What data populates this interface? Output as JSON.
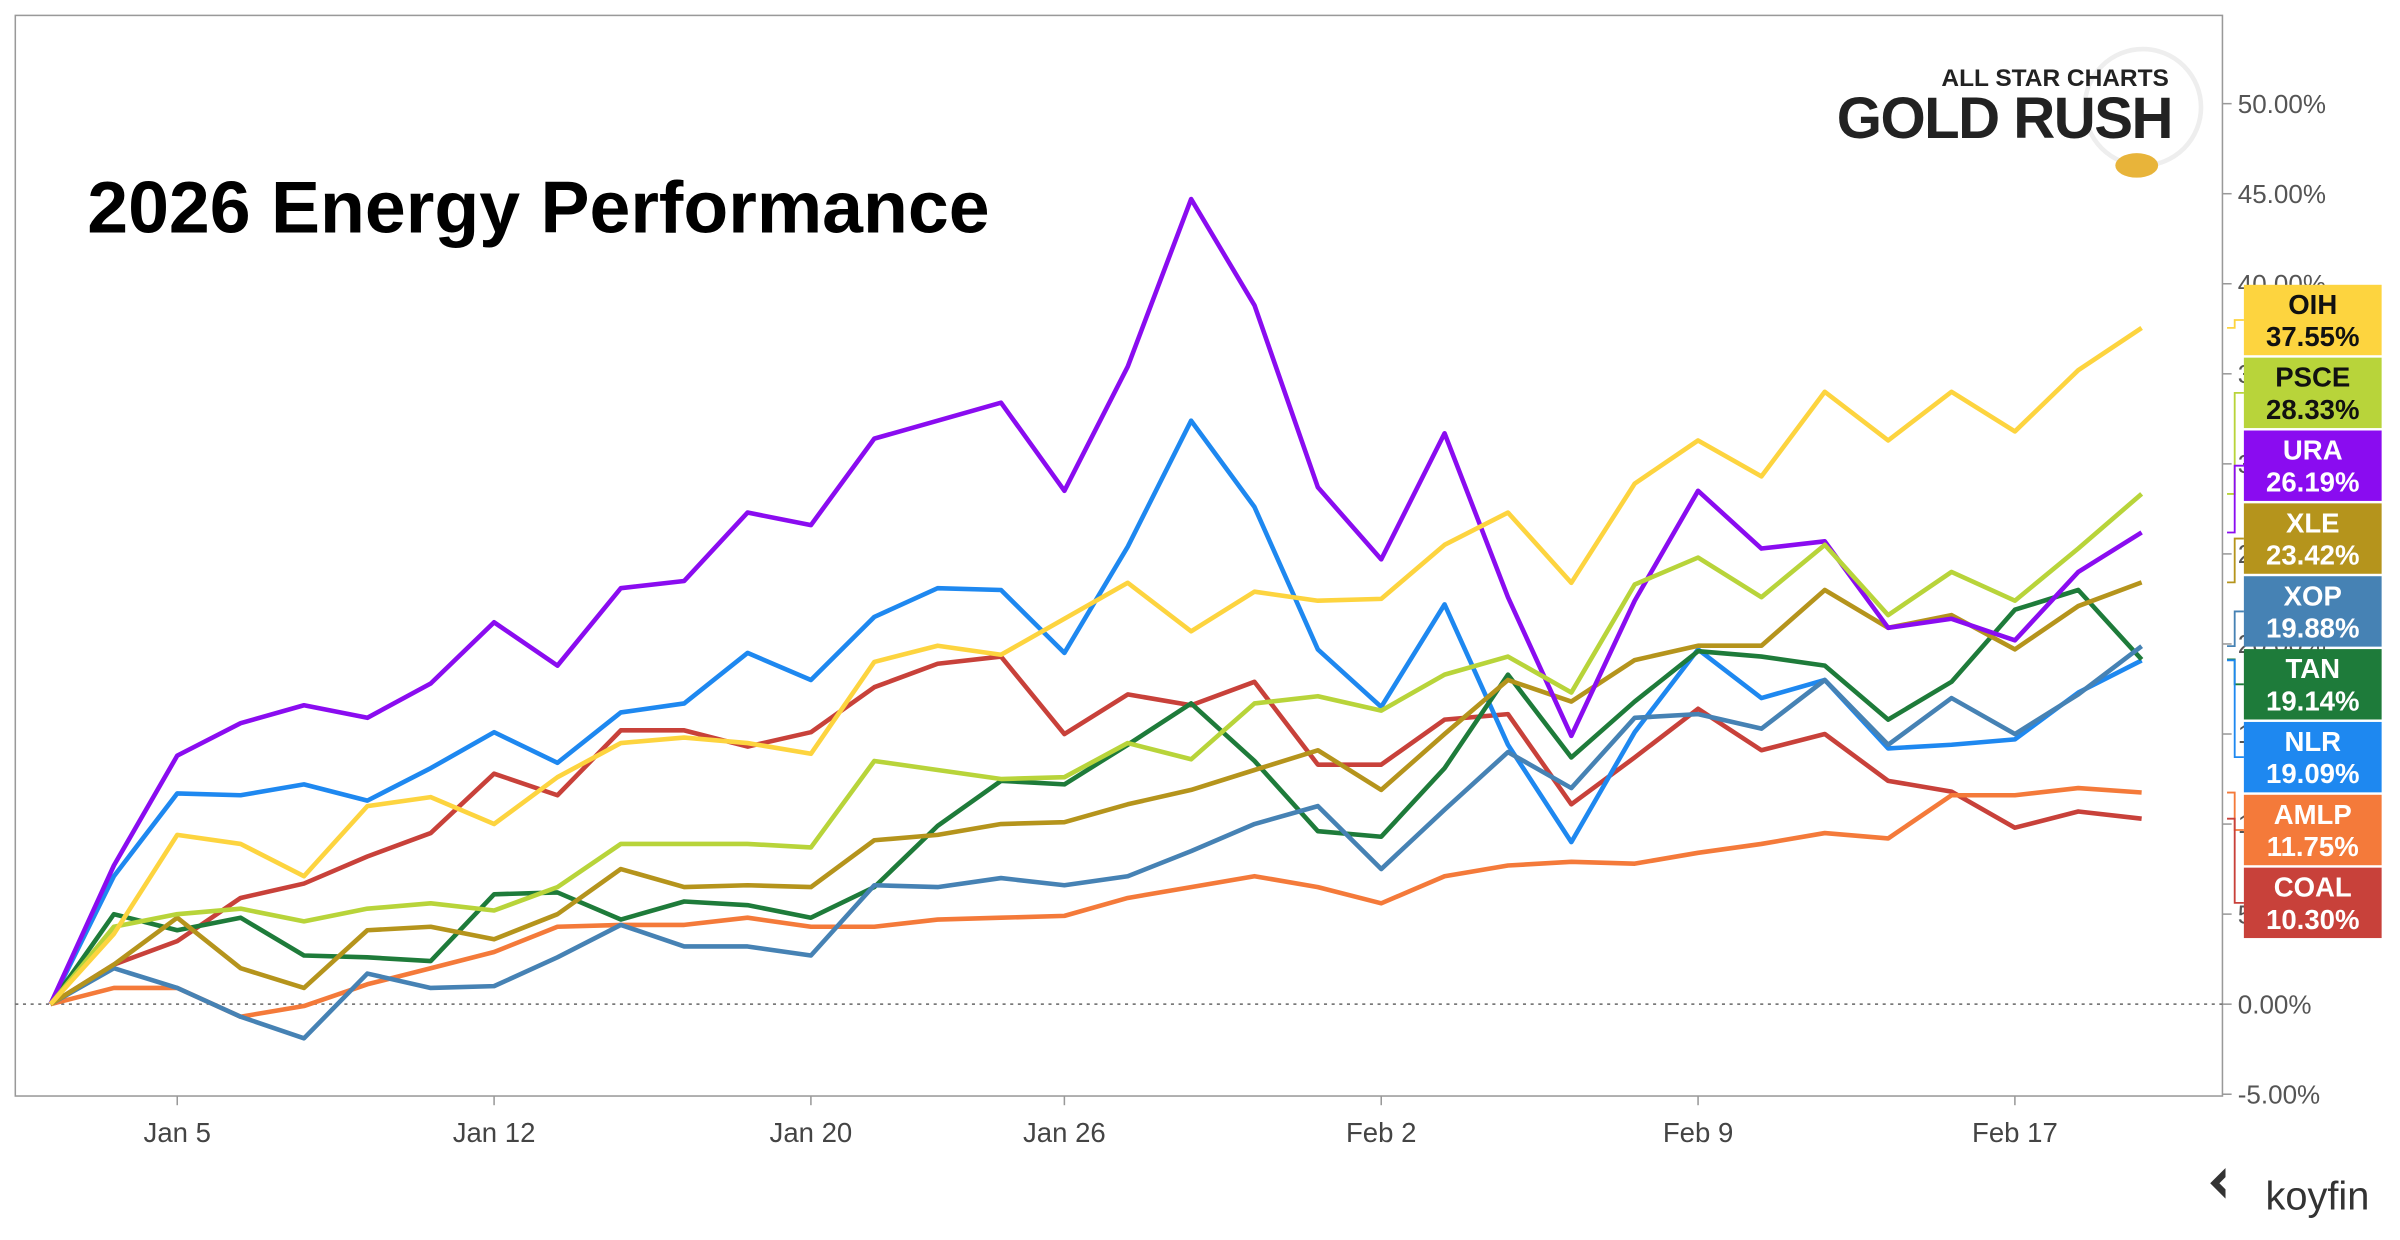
{
  "chart_data": {
    "type": "line",
    "title": "2026 Energy Performance",
    "logo_top": "ALL STAR CHARTS",
    "logo_main": "GOLD RUSH",
    "source": "koyfin",
    "categories": [
      null,
      null,
      "Jan 5",
      null,
      null,
      null,
      null,
      "Jan 12",
      null,
      null,
      null,
      null,
      "Jan 20",
      null,
      null,
      null,
      "Jan 26",
      null,
      null,
      null,
      null,
      "Feb 2",
      null,
      null,
      null,
      null,
      "Feb 9",
      null,
      null,
      null,
      null,
      "Feb 17",
      null,
      null
    ],
    "ylim": [
      -5.1,
      54.9
    ],
    "yticks": [
      {
        "value": -5,
        "label": "-5.00%"
      },
      {
        "value": 0,
        "label": "0.00%"
      },
      {
        "value": 5,
        "label": "5.00%"
      },
      {
        "value": 10,
        "label": "10.00%"
      },
      {
        "value": 15,
        "label": "15.00%"
      },
      {
        "value": 20,
        "label": "20.00%"
      },
      {
        "value": 25,
        "label": "25.00%"
      },
      {
        "value": 30,
        "label": "30.00%"
      },
      {
        "value": 35,
        "label": "35.00%"
      },
      {
        "value": 40,
        "label": "40.00%"
      },
      {
        "value": 45,
        "label": "45.00%"
      },
      {
        "value": 50,
        "label": "50.00%"
      }
    ],
    "zero_line": true,
    "series": [
      {
        "name": "OIH",
        "color": "#fdd43f",
        "end_label": "37.55%",
        "values": [
          0,
          3.9,
          9.4,
          8.9,
          7.1,
          11.0,
          11.5,
          10.0,
          12.6,
          14.5,
          14.8,
          14.5,
          13.9,
          19.0,
          19.9,
          19.4,
          21.4,
          23.4,
          20.7,
          22.9,
          22.4,
          22.5,
          25.5,
          27.3,
          23.4,
          28.9,
          31.3,
          29.3,
          34.0,
          31.3,
          34.0,
          31.8,
          35.2,
          37.55
        ]
      },
      {
        "name": "PSCE",
        "color": "#b8d43a",
        "end_label": "28.33%",
        "values": [
          0,
          4.3,
          5.0,
          5.3,
          4.6,
          5.3,
          5.6,
          5.2,
          6.5,
          8.9,
          8.9,
          8.9,
          8.7,
          13.5,
          13.0,
          12.5,
          12.6,
          14.5,
          13.6,
          16.7,
          17.1,
          16.3,
          18.3,
          19.3,
          17.3,
          23.3,
          24.8,
          22.6,
          25.5,
          21.6,
          24.0,
          22.4,
          25.3,
          28.33
        ]
      },
      {
        "name": "URA",
        "color": "#8a0cf0",
        "end_label": "26.19%",
        "values": [
          0,
          7.7,
          13.8,
          15.6,
          16.6,
          15.9,
          17.8,
          21.2,
          18.8,
          23.1,
          23.5,
          27.3,
          26.6,
          31.4,
          32.4,
          33.4,
          28.5,
          35.4,
          44.7,
          38.8,
          28.7,
          24.7,
          31.7,
          22.6,
          14.9,
          22.4,
          28.5,
          25.3,
          25.7,
          20.9,
          21.4,
          20.2,
          24.0,
          26.19
        ]
      },
      {
        "name": "XLE",
        "color": "#b5941c",
        "end_label": "23.42%",
        "values": [
          0,
          2.2,
          4.8,
          2.0,
          0.9,
          4.1,
          4.3,
          3.6,
          5.0,
          7.5,
          6.5,
          6.6,
          6.5,
          9.1,
          9.4,
          10.0,
          10.1,
          11.1,
          11.9,
          13.0,
          14.1,
          11.9,
          15.0,
          18.0,
          16.8,
          19.1,
          19.9,
          19.9,
          23.0,
          20.9,
          21.6,
          19.7,
          22.1,
          23.42
        ]
      },
      {
        "name": "XOP",
        "color": "#4682b4",
        "end_label": "19.88%",
        "values": [
          0,
          2.0,
          0.9,
          -0.7,
          -1.9,
          1.7,
          0.9,
          1.0,
          2.6,
          4.4,
          3.2,
          3.2,
          2.7,
          6.6,
          6.5,
          7.0,
          6.6,
          7.1,
          8.5,
          10.0,
          11.0,
          7.5,
          10.8,
          14.0,
          12.0,
          15.9,
          16.1,
          15.3,
          18.0,
          14.4,
          17.0,
          15.0,
          17.2,
          19.88
        ]
      },
      {
        "name": "TAN",
        "color": "#1e7b3a",
        "end_label": "19.14%",
        "values": [
          0,
          5.0,
          4.1,
          4.8,
          2.7,
          2.6,
          2.4,
          6.1,
          6.2,
          4.7,
          5.7,
          5.5,
          4.8,
          6.5,
          9.9,
          12.4,
          12.2,
          14.4,
          16.7,
          13.5,
          9.6,
          9.3,
          13.1,
          18.3,
          13.7,
          16.8,
          19.6,
          19.3,
          18.8,
          15.8,
          17.9,
          21.9,
          23.0,
          19.14
        ]
      },
      {
        "name": "NLR",
        "color": "#1e88f0",
        "end_label": "19.09%",
        "values": [
          0,
          7.1,
          11.7,
          11.6,
          12.2,
          11.3,
          13.1,
          15.1,
          13.4,
          16.2,
          16.7,
          19.5,
          18.0,
          21.5,
          23.1,
          23.0,
          19.5,
          25.4,
          32.4,
          27.6,
          19.7,
          16.5,
          22.2,
          14.4,
          9.0,
          15.1,
          19.7,
          17.0,
          18.0,
          14.2,
          14.4,
          14.7,
          17.3,
          19.09
        ]
      },
      {
        "name": "AMLP",
        "color": "#f47a3a",
        "end_label": "11.75%",
        "values": [
          0,
          0.9,
          0.9,
          -0.7,
          -0.1,
          1.1,
          2.0,
          2.9,
          4.3,
          4.4,
          4.4,
          4.8,
          4.3,
          4.3,
          4.7,
          4.8,
          4.9,
          5.9,
          6.5,
          7.1,
          6.5,
          5.6,
          7.1,
          7.7,
          7.9,
          7.8,
          8.4,
          8.9,
          9.5,
          9.2,
          11.6,
          11.6,
          12.0,
          11.75
        ]
      },
      {
        "name": "COAL",
        "color": "#c8413a",
        "end_label": "10.30%",
        "values": [
          0,
          2.2,
          3.5,
          5.9,
          6.7,
          8.2,
          9.5,
          12.8,
          11.6,
          15.2,
          15.2,
          14.3,
          15.1,
          17.6,
          18.9,
          19.3,
          15.0,
          17.2,
          16.6,
          17.9,
          13.3,
          13.3,
          15.8,
          16.1,
          11.1,
          13.7,
          16.4,
          14.1,
          15.0,
          12.4,
          11.8,
          9.8,
          10.7,
          10.3
        ]
      }
    ]
  }
}
